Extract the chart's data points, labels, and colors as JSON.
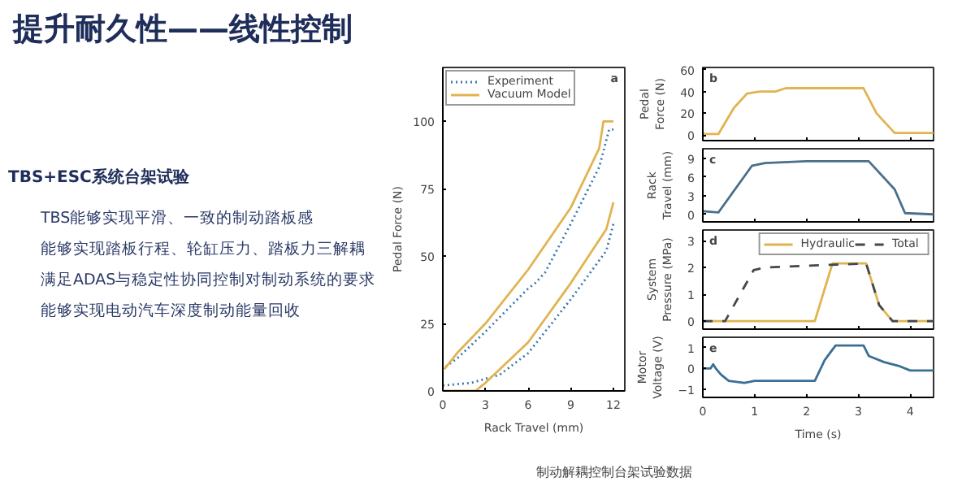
{
  "chart_data": [
    {
      "type": "line",
      "title": "提升耐久性——线性控制",
      "xlabel": "Rack Travel (mm)",
      "ylabel": "Pedal Force (N)",
      "xlim": [
        0,
        12.8
      ],
      "ylim": [
        0,
        120
      ],
      "xticks": [
        0,
        3,
        6,
        9,
        12
      ],
      "yticks": [
        0,
        25,
        50,
        75,
        100
      ],
      "legend": "top",
      "annotations": [
        "a",
        "TBS+ESC系统台架试验",
        "TBS能够实现平滑、一致的制动踏板感",
        "能够实现踏板行程、轮缸压力、踏板力三解耦",
        "满足ADAS与稳定性协同控制对制动系统的要求",
        "能够实现电动汽车深度制动能量回收",
        "制动解耦控制台架试验数据"
      ],
      "series": [
        {
          "name": "Experiment",
          "color": "#3a78b0",
          "line_style": "dotted",
          "x": [
            0.2,
            1,
            3,
            6,
            6.5,
            7.2,
            9,
            11,
            11.7,
            12
          ],
          "values": [
            9,
            12,
            22,
            38,
            40,
            44,
            62,
            83,
            97,
            97
          ]
        },
        {
          "color": "#3a78b0",
          "line_style": "dotted",
          "x": [
            0,
            2,
            4,
            6,
            9,
            11.5,
            12
          ],
          "values": [
            2,
            3,
            6,
            14,
            34,
            52,
            62
          ]
        },
        {
          "name": "Vacuum Model",
          "color": "#e0b450",
          "line_style": "solid",
          "x": [
            0.1,
            1,
            3,
            6,
            9,
            11,
            11.3,
            12
          ],
          "values": [
            8,
            14,
            25,
            45,
            68,
            90,
            100,
            100
          ]
        },
        {
          "color": "#e0b450",
          "line_style": "solid",
          "x": [
            0,
            2.3,
            3,
            6,
            9,
            11.5,
            12
          ],
          "values": [
            0,
            0,
            3,
            18,
            40,
            60,
            70
          ]
        }
      ]
    },
    {
      "type": "line",
      "ylabel": "Pedal Force (N)",
      "xlim": [
        0,
        4.45
      ],
      "ylim": [
        -5,
        62
      ],
      "xticks": [
        0,
        1,
        2,
        3,
        4
      ],
      "yticks": [
        0,
        20,
        40,
        60
      ],
      "tick_labels": "y",
      "annotations": [
        "b"
      ],
      "series": [
        {
          "color": "#e0b450",
          "x": [
            0,
            0.3,
            0.6,
            0.85,
            1.1,
            1.4,
            1.6,
            3.1,
            3.35,
            3.7,
            4.45
          ],
          "values": [
            1,
            1,
            25,
            38,
            40,
            40,
            43,
            43,
            20,
            2,
            2
          ]
        }
      ]
    },
    {
      "type": "line",
      "ylabel": "Rack Travel (mm)",
      "xlim": [
        0,
        4.45
      ],
      "ylim": [
        -1.2,
        10.5
      ],
      "xticks": [
        0,
        1,
        2,
        3,
        4
      ],
      "yticks": [
        0,
        3,
        6,
        9
      ],
      "tick_labels": "y",
      "annotations": [
        "c"
      ],
      "series": [
        {
          "color": "#4a6f8a",
          "x": [
            0,
            0.3,
            0.95,
            1.2,
            2,
            3.2,
            3.7,
            3.9,
            4.45
          ],
          "values": [
            0.5,
            0.3,
            7.8,
            8.2,
            8.5,
            8.5,
            4,
            0.2,
            0
          ]
        }
      ]
    },
    {
      "type": "line",
      "ylabel": "System Pressure (MPa)",
      "xlim": [
        0,
        4.45
      ],
      "ylim": [
        -0.3,
        3.4
      ],
      "xticks": [
        0,
        1,
        2,
        3,
        4
      ],
      "yticks": [
        0,
        1,
        2,
        3
      ],
      "tick_labels": "y",
      "legend": "top right",
      "annotations": [
        "d"
      ],
      "series": [
        {
          "name": "Hydraulic",
          "color": "#e0b450",
          "line_style": "solid",
          "x": [
            0,
            2.16,
            2.5,
            3.15,
            3.4,
            3.66,
            4.45
          ],
          "values": [
            0,
            0,
            2.15,
            2.15,
            0.6,
            0,
            0
          ]
        },
        {
          "name": "Total",
          "color": "#404850",
          "line_style": "dashed",
          "x": [
            0,
            0.43,
            0.98,
            1.2,
            2.45,
            3.15,
            3.4,
            3.66,
            4.45
          ],
          "values": [
            0,
            0,
            1.9,
            2.0,
            2.1,
            2.15,
            0.6,
            0,
            0
          ]
        }
      ]
    },
    {
      "type": "line",
      "xlabel": "Time (s)",
      "ylabel": "Motor Voltage (V)",
      "xlim": [
        0,
        4.45
      ],
      "ylim": [
        -1.4,
        1.5
      ],
      "xticks": [
        0,
        1,
        2,
        3,
        4
      ],
      "yticks": [
        -1,
        0,
        1
      ],
      "annotations": [
        "e"
      ],
      "series": [
        {
          "color": "#3a6f95",
          "x": [
            0,
            0.15,
            0.2,
            0.25,
            0.35,
            0.5,
            0.8,
            1.0,
            2.16,
            2.35,
            2.56,
            3.1,
            3.2,
            3.5,
            3.8,
            4.0,
            4.45
          ],
          "values": [
            0,
            0,
            0.2,
            0,
            -0.3,
            -0.6,
            -0.7,
            -0.6,
            -0.6,
            0.4,
            1.1,
            1.1,
            0.6,
            0.3,
            0.1,
            -0.1,
            -0.1
          ]
        }
      ]
    }
  ]
}
